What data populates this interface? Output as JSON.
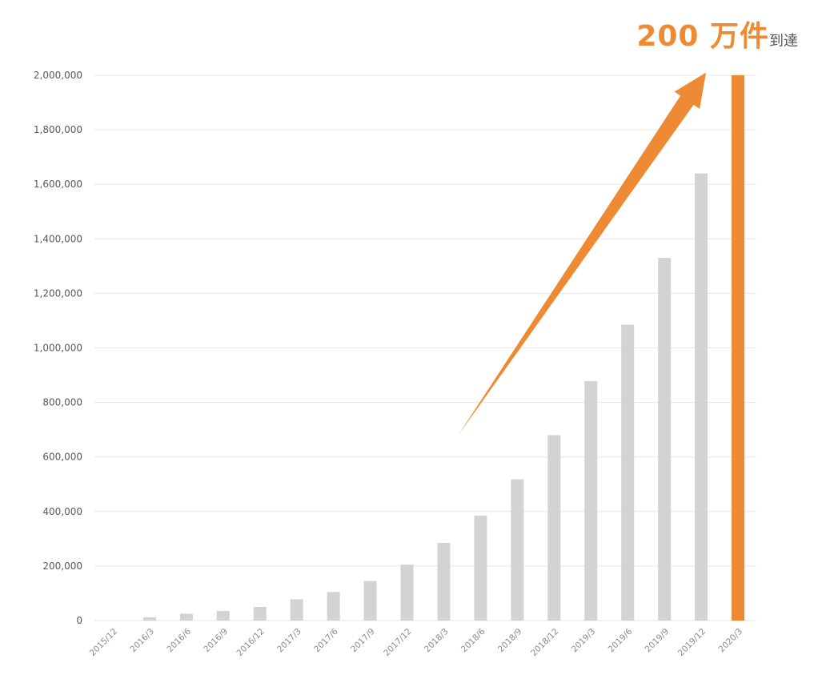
{
  "headline": {
    "amount": "200 万件",
    "suffix": "到達"
  },
  "colors": {
    "bar": "#d3d3d3",
    "highlight": "#ef8a34",
    "grid": "#e6e6e6"
  },
  "chart_data": {
    "type": "bar",
    "title": "",
    "xlabel": "",
    "ylabel": "",
    "ylim": [
      0,
      2000000
    ],
    "yticks": [
      0,
      200000,
      400000,
      600000,
      800000,
      1000000,
      1200000,
      1400000,
      1600000,
      1800000,
      2000000
    ],
    "ytick_labels": [
      "0",
      "200,000",
      "400,000",
      "600,000",
      "800,000",
      "1,000,000",
      "1,200,000",
      "1,400,000",
      "1,600,000",
      "1,800,000",
      "2,000,000"
    ],
    "categories": [
      "2015/12",
      "2016/3",
      "2016/6",
      "2016/9",
      "2016/12",
      "2017/3",
      "2017/6",
      "2017/9",
      "2017/12",
      "2018/3",
      "2018/6",
      "2018/9",
      "2018/12",
      "2019/3",
      "2019/6",
      "2019/9",
      "2019/12",
      "2020/3"
    ],
    "values": [
      0,
      12000,
      25000,
      35000,
      50000,
      78000,
      105000,
      145000,
      205000,
      285000,
      385000,
      518000,
      680000,
      878000,
      1085000,
      1330000,
      1640000,
      2000000
    ],
    "highlight_index": 17,
    "grid": true,
    "annotation": "orange arrow pointing upward toward the 2,000,000 bar"
  }
}
